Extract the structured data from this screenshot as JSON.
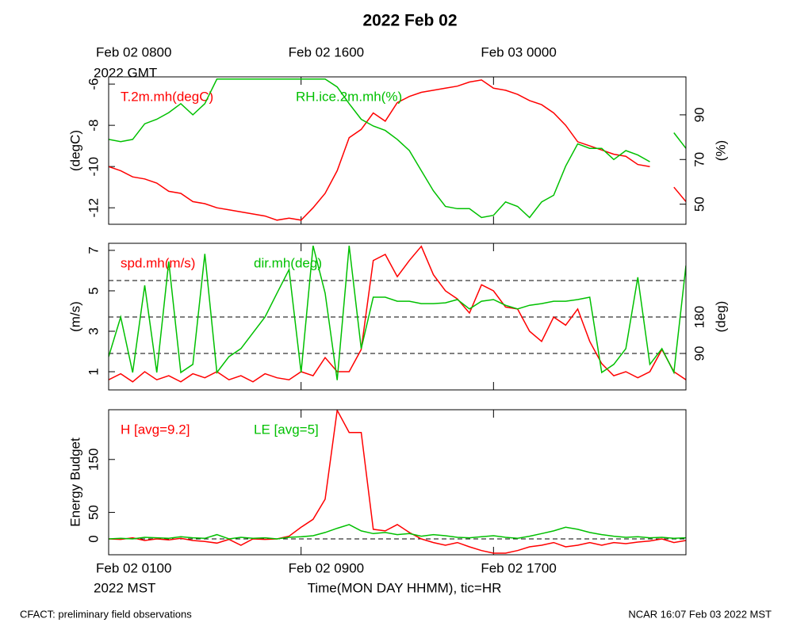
{
  "title": "2022 Feb 02",
  "time_axis": {
    "x": [
      0,
      0.5,
      1,
      1.5,
      2,
      2.5,
      3,
      3.5,
      4,
      4.5,
      5,
      5.5,
      6,
      6.5,
      7,
      7.5,
      8,
      8.5,
      9,
      9.5,
      10,
      10.5,
      11,
      11.5,
      12,
      12.5,
      13,
      13.5,
      14,
      14.5,
      15,
      15.5,
      16,
      16.5,
      17,
      17.5,
      18,
      18.5,
      19,
      19.5,
      20,
      20.5,
      21,
      21.5,
      22,
      22.5,
      23,
      23.5,
      24
    ],
    "xlim": [
      0,
      24
    ],
    "xticks": [
      {
        "value": 0,
        "label": "Feb 02 0100"
      },
      {
        "value": 8,
        "label": "Feb 02 0900"
      },
      {
        "value": 16,
        "label": "Feb 02 1700"
      }
    ],
    "x_sublabel": "2022 MST",
    "x2ticks": [
      {
        "value": 0,
        "label": "Feb 02 0800"
      },
      {
        "value": 8,
        "label": "Feb 02 1600"
      },
      {
        "value": 16,
        "label": "Feb 03 0000"
      }
    ],
    "x2_sublabel": "2022 GMT",
    "xlabel": "Time(MON DAY HHMM), tic=HR"
  },
  "footer": {
    "left": "CFACT: preliminary field observations",
    "right": "NCAR 16:07 Feb 03 2022 MST"
  },
  "chart_data": [
    {
      "type": "line",
      "ylabel": "(degC)",
      "ylim": [
        -12.8,
        -5.65
      ],
      "yticks": [
        -12,
        -10,
        -8,
        -6
      ],
      "y2label": "(%)",
      "y2lim": [
        41,
        107
      ],
      "y2ticks": [
        50,
        70,
        90
      ],
      "series": [
        {
          "name": "T.2m.mh(degC)",
          "color": "#ff0000",
          "values": [
            -10.0,
            -10.2,
            -10.5,
            -10.6,
            -10.8,
            -11.2,
            -11.3,
            -11.7,
            -11.8,
            -12.0,
            -12.1,
            -12.2,
            -12.3,
            -12.4,
            -12.6,
            -12.5,
            -12.6,
            -12.0,
            -11.3,
            -10.2,
            -8.6,
            -8.2,
            -7.4,
            -7.8,
            -6.9,
            -6.6,
            -6.4,
            -6.3,
            -6.2,
            -6.1,
            -5.9,
            -5.8,
            -6.2,
            -6.3,
            -6.5,
            -6.8,
            -7.0,
            -7.4,
            -8.0,
            -8.8,
            -9.0,
            -9.2,
            -9.4,
            -9.5,
            -9.9,
            -10.0,
            null,
            -11.0,
            -11.7
          ]
        },
        {
          "name": "RH.ice.2m.mh(%)",
          "color": "#00c000",
          "axis": "y2",
          "values": [
            79,
            78,
            79,
            86,
            88,
            91,
            95,
            90,
            95,
            106,
            106,
            106,
            106,
            106,
            106,
            106,
            106,
            106,
            106,
            102.5,
            95,
            88,
            85,
            83,
            79,
            74,
            65,
            56,
            49,
            48,
            48,
            44,
            45,
            51,
            49,
            44,
            51,
            54,
            67,
            77,
            75,
            75,
            70,
            74,
            72,
            69,
            null,
            82,
            75
          ]
        }
      ]
    },
    {
      "type": "line",
      "ylabel": "(m/s)",
      "ylim": [
        0.1,
        7.35
      ],
      "yticks": [
        1,
        3,
        5,
        7
      ],
      "y2label": "(deg)",
      "y2lim": [
        0,
        362
      ],
      "y2ticks": [
        90,
        180
      ],
      "y2_reflines": [
        90,
        180,
        270
      ],
      "series": [
        {
          "name": "spd.mh(m/s)",
          "color": "#ff0000",
          "values": [
            0.6,
            0.9,
            0.5,
            1.0,
            0.6,
            0.8,
            0.5,
            0.9,
            0.7,
            1.0,
            0.6,
            0.8,
            0.5,
            0.9,
            0.7,
            0.6,
            1.0,
            0.8,
            1.7,
            1.0,
            1.0,
            2.1,
            6.5,
            6.8,
            5.7,
            6.5,
            7.2,
            5.8,
            5.0,
            4.6,
            3.9,
            5.3,
            5.0,
            4.2,
            4.1,
            3.0,
            2.5,
            3.7,
            3.3,
            4.1,
            2.5,
            1.4,
            0.8,
            1.0,
            0.7,
            1.0,
            2.1,
            1.0,
            0.6
          ]
        },
        {
          "name": "dir.mh(deg)",
          "color": "#00c000",
          "axis": "y2",
          "values": [
            82,
            180,
            43,
            258,
            43,
            317,
            43,
            63,
            336,
            43,
            82,
            102,
            141,
            180,
            239,
            297,
            43,
            356,
            239,
            24,
            356,
            102,
            229,
            229,
            219,
            219,
            213,
            213,
            215,
            223,
            200,
            219,
            223,
            209,
            200,
            209,
            213,
            219,
            219,
            223,
            229,
            43,
            63,
            102,
            278,
            63,
            102,
            43,
            307
          ]
        }
      ]
    },
    {
      "type": "line",
      "ylabel": "Energy Budget",
      "ylim": [
        -30,
        244
      ],
      "yticks": [
        0,
        50,
        150
      ],
      "reflines": [
        0
      ],
      "series": [
        {
          "name": "H [avg=9.2]",
          "color": "#ff0000",
          "values": [
            0,
            -1,
            2,
            -3,
            0,
            -2,
            1,
            -3,
            -5,
            -8,
            -1,
            -12,
            0,
            -1,
            0,
            5,
            22,
            37,
            75,
            243,
            201,
            201,
            18,
            15,
            27,
            12,
            0,
            -7,
            -12,
            -7,
            -15,
            -22,
            -27,
            -27,
            -22,
            -15,
            -12,
            -7,
            -15,
            -12,
            -7,
            -12,
            -7,
            -9,
            -6,
            -4,
            0,
            -7,
            -3
          ]
        },
        {
          "name": "LE [avg=5]",
          "color": "#00c000",
          "values": [
            0,
            1,
            0,
            3,
            2,
            1,
            4,
            2,
            1,
            8,
            0,
            3,
            1,
            2,
            0,
            3,
            4,
            6,
            12,
            20,
            27,
            15,
            10,
            12,
            8,
            10,
            5,
            8,
            6,
            3,
            2,
            4,
            6,
            3,
            1,
            5,
            10,
            15,
            22,
            18,
            12,
            8,
            5,
            3,
            4,
            2,
            3,
            1,
            2
          ]
        }
      ]
    }
  ]
}
